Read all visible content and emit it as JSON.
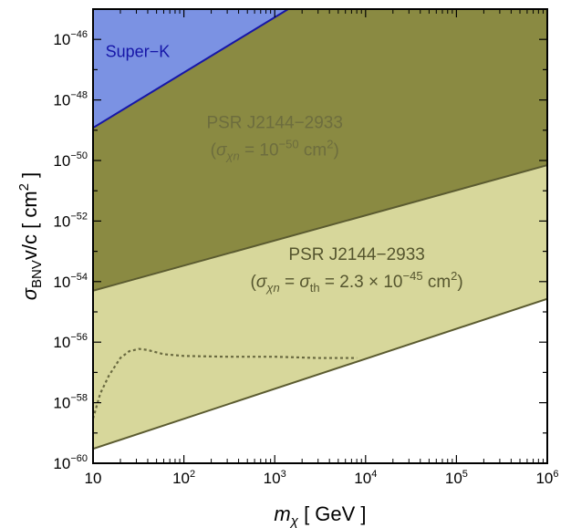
{
  "chart_data": {
    "type": "area",
    "x_scale": "log",
    "y_scale": "log",
    "xlim": [
      10,
      1000000
    ],
    "ylim": [
      1e-60,
      1e-45
    ],
    "x_ticks": [
      {
        "base": "10",
        "exp": ""
      },
      {
        "base": "10",
        "exp": "2"
      },
      {
        "base": "10",
        "exp": "3"
      },
      {
        "base": "10",
        "exp": "4"
      },
      {
        "base": "10",
        "exp": "5"
      },
      {
        "base": "10",
        "exp": "6"
      }
    ],
    "y_ticks": [
      {
        "base": "10",
        "exp": "−46"
      },
      {
        "base": "10",
        "exp": "−48"
      },
      {
        "base": "10",
        "exp": "−50"
      },
      {
        "base": "10",
        "exp": "−52"
      },
      {
        "base": "10",
        "exp": "−54"
      },
      {
        "base": "10",
        "exp": "−56"
      },
      {
        "base": "10",
        "exp": "−58"
      },
      {
        "base": "10",
        "exp": "−60"
      }
    ],
    "xlabel": {
      "main": "m",
      "sub": "χ",
      "unit": "[ GeV ]"
    },
    "ylabel": {
      "main": "σ",
      "sub": "BNV",
      "rest": "v/c [ cm",
      "sup": "2",
      "end": " ]"
    },
    "grid": false,
    "colors": {
      "superk_fill": "#7b92e3",
      "superk_line": "#1616a8",
      "psr1_fill": "#8a8a42",
      "psr1_line": "#5b5b30",
      "psr2_fill": "#d7d79b",
      "psr2_line": "#5b5b30",
      "dotted": "#6a6a40",
      "label1": "#6d6d3e",
      "label2": "#55552e"
    },
    "series": [
      {
        "name": "Super-K",
        "kind": "region_above",
        "x": [
          10,
          1000000
        ],
        "y": [
          1.2e-49,
          1.6e-40
        ]
      },
      {
        "name": "PSR J2144−2933 (σχn = 10−50 cm2)",
        "kind": "region_above",
        "x": [
          10,
          1000000
        ],
        "y": [
          5e-55,
          7e-51
        ]
      },
      {
        "name": "PSR J2144−2933 (σχn = σth = 2.3 × 10−45 cm2)",
        "kind": "region_above",
        "x": [
          10,
          1000000
        ],
        "y": [
          3e-60,
          2.7e-55
        ]
      },
      {
        "name": "",
        "kind": "dotted_line",
        "x": [
          10,
          12,
          15,
          20,
          25,
          32,
          40,
          60,
          100,
          300,
          1000,
          3000,
          8000
        ],
        "y": [
          3e-59,
          2e-58,
          8e-58,
          3e-57,
          5e-57,
          6e-57,
          5.5e-57,
          4e-57,
          3.5e-57,
          3.3e-57,
          3.3e-57,
          3e-57,
          3e-57
        ]
      }
    ],
    "annotations": {
      "superk": {
        "text": "Super−K",
        "x": 31,
        "y": 4e-47
      },
      "psr1": {
        "line1": "PSR J2144−2933",
        "line2": {
          "open": "(",
          "sigma": "σ",
          "sub": "χn",
          "eq": " = 10",
          "exp": "−50",
          "unit": " cm",
          "unitexp": "2",
          "close": ")"
        },
        "x": 1000,
        "y1": 1.8e-49,
        "y2": 2.2e-50
      },
      "psr2": {
        "line1": "PSR J2144−2933",
        "line2": {
          "open": "(",
          "sigma": "σ",
          "sub": "χn",
          "eq": " = ",
          "sigma2": "σ",
          "sub2": "th",
          "eq2": " = 2.3 × 10",
          "exp": "−45",
          "unit": " cm",
          "unitexp": "2",
          "close": ")"
        },
        "x": 8000,
        "y1": 8e-54,
        "y2": 1e-54
      }
    }
  }
}
